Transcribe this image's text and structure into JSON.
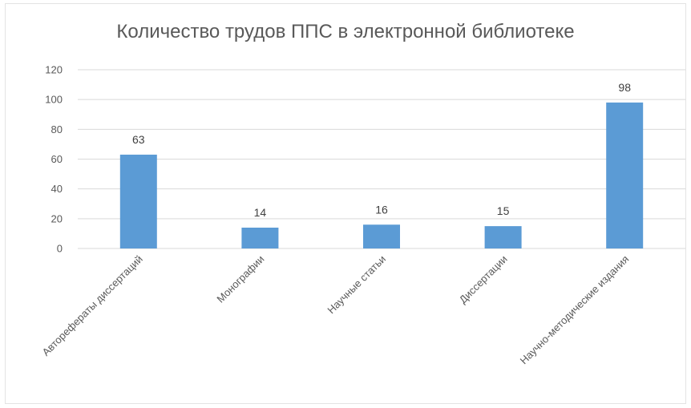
{
  "chart_data": {
    "type": "bar",
    "title": "Количество трудов ППС в электронной библиотеке",
    "xlabel": "",
    "ylabel": "",
    "categories": [
      "Авторефераты диссертаций",
      "Монографии",
      "Научные статьи",
      "Диссертации",
      "Научно-методические издания"
    ],
    "values": [
      63,
      14,
      16,
      15,
      98
    ],
    "data_labels": [
      "63",
      "14",
      "16",
      "15",
      "98"
    ],
    "ylim": [
      0,
      120
    ],
    "yticks": [
      0,
      20,
      40,
      60,
      80,
      100,
      120
    ],
    "grid": true,
    "legend": "none",
    "bar_color": "#5b9bd5",
    "grid_color": "#d9d9d9"
  }
}
